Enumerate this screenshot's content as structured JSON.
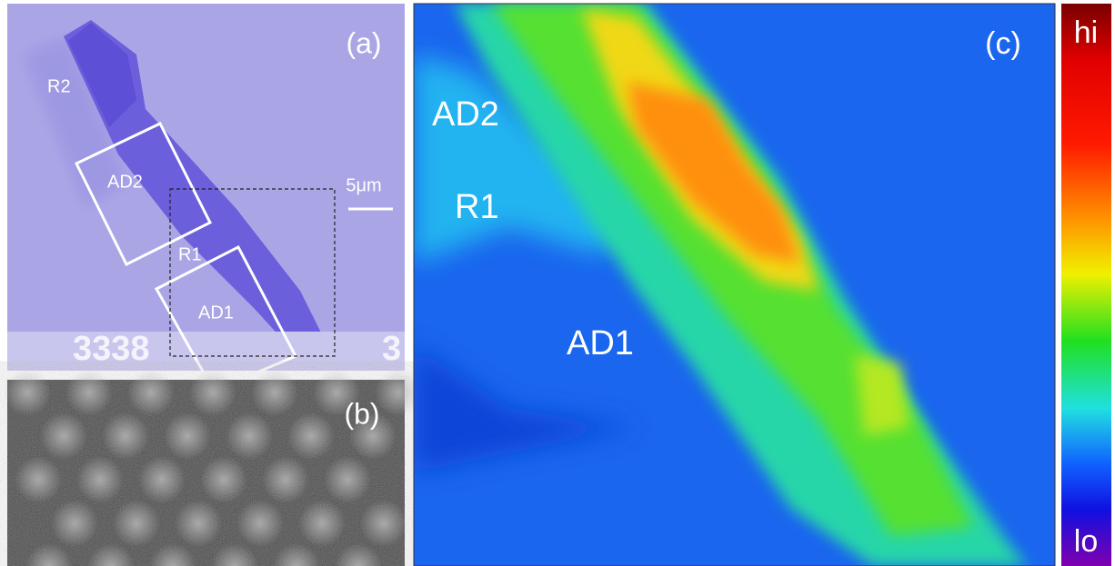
{
  "panel_a": {
    "label": "(a)",
    "regions": [
      "R2",
      "AD2",
      "R1",
      "AD1"
    ],
    "scale_bar": "5μm",
    "substrate_digits": [
      "3338",
      "3"
    ]
  },
  "panel_b": {
    "label": "(b)"
  },
  "panel_c": {
    "label": "(c)",
    "regions": [
      "AD2",
      "R1",
      "AD1"
    ]
  },
  "colorbar": {
    "max_label": "hi",
    "min_label": "lo"
  }
}
